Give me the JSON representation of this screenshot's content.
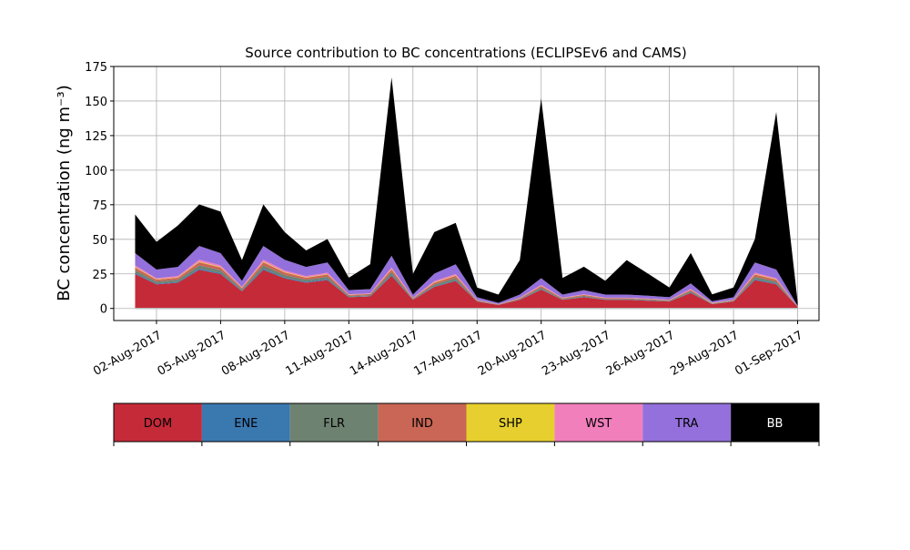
{
  "chart_data": {
    "type": "stacked_area",
    "title": "Source contribution to BC concentrations (ECLIPSEv6 and CAMS)",
    "y_label": "BC concentration (ng m⁻³)",
    "x": [
      "2017-08-01",
      "2017-08-02",
      "2017-08-03",
      "2017-08-04",
      "2017-08-05",
      "2017-08-06",
      "2017-08-07",
      "2017-08-08",
      "2017-08-09",
      "2017-08-10",
      "2017-08-11",
      "2017-08-12",
      "2017-08-13",
      "2017-08-14",
      "2017-08-15",
      "2017-08-16",
      "2017-08-17",
      "2017-08-18",
      "2017-08-19",
      "2017-08-20",
      "2017-08-21",
      "2017-08-22",
      "2017-08-23",
      "2017-08-24",
      "2017-08-25",
      "2017-08-26",
      "2017-08-27",
      "2017-08-28",
      "2017-08-29",
      "2017-08-30",
      "2017-08-31",
      "2017-09-01"
    ],
    "series": [
      {
        "name": "DOM",
        "color": "#c52a38",
        "values": [
          24.8,
          17.4,
          18.6,
          27.9,
          24.8,
          12.4,
          27.9,
          21.7,
          18.6,
          20.5,
          8.1,
          8.7,
          23.6,
          6.2,
          15.5,
          19.8,
          5,
          2.5,
          6.2,
          13.6,
          6.2,
          8.1,
          6.2,
          6.2,
          5.6,
          5,
          11.2,
          3.1,
          5,
          20.5,
          17.4,
          1.2
        ]
      },
      {
        "name": "ENE",
        "color": "#3a78b0",
        "values": [
          0.8,
          0.6,
          0.6,
          0.9,
          0.8,
          0.4,
          0.9,
          0.7,
          0.6,
          0.7,
          0.3,
          0.3,
          0.8,
          0.2,
          0.5,
          0.6,
          0.2,
          0.1,
          0.2,
          0.4,
          0.2,
          0.3,
          0.2,
          0.2,
          0.2,
          0.2,
          0.4,
          0.1,
          0.2,
          0.7,
          0.6,
          0
        ]
      },
      {
        "name": "FLR",
        "color": "#6e8271",
        "values": [
          2,
          1.4,
          1.5,
          2.3,
          2,
          1,
          2.3,
          1.8,
          1.5,
          1.7,
          0.7,
          0.7,
          1.9,
          0.5,
          1.3,
          1.6,
          0.4,
          0.2,
          0.5,
          1.1,
          0.5,
          0.7,
          0.5,
          0.5,
          0.5,
          0.4,
          0.9,
          0.3,
          0.4,
          1.7,
          1.4,
          0.1
        ]
      },
      {
        "name": "IND",
        "color": "#c96655",
        "values": [
          2,
          1.4,
          1.5,
          2.3,
          2,
          1,
          2.3,
          1.8,
          1.5,
          1.7,
          0.7,
          0.7,
          1.9,
          0.5,
          1.3,
          1.6,
          0.4,
          0.2,
          0.5,
          1.1,
          0.5,
          0.7,
          0.5,
          0.5,
          0.5,
          0.4,
          0.9,
          0.3,
          0.4,
          1.7,
          1.4,
          0.1
        ]
      },
      {
        "name": "SHP",
        "color": "#e6cf2e",
        "values": [
          0.4,
          0.3,
          0.3,
          0.5,
          0.4,
          0.2,
          0.5,
          0.4,
          0.3,
          0.3,
          0.1,
          0.1,
          0.4,
          0.1,
          0.3,
          0.3,
          0.1,
          0,
          0.1,
          0.2,
          0.1,
          0.1,
          0.1,
          0.1,
          0.1,
          0.1,
          0.2,
          0.1,
          0.1,
          0.3,
          0.3,
          0
        ]
      },
      {
        "name": "WST",
        "color": "#f07fbc",
        "values": [
          1.2,
          0.8,
          0.9,
          1.4,
          1.2,
          0.6,
          1.4,
          1.1,
          0.9,
          1,
          0.4,
          0.4,
          1.1,
          0.3,
          0.8,
          1,
          0.2,
          0.1,
          0.3,
          0.7,
          0.3,
          0.4,
          0.3,
          0.3,
          0.3,
          0.2,
          0.5,
          0.2,
          0.2,
          1,
          0.8,
          0.1
        ]
      },
      {
        "name": "TRA",
        "color": "#9370db",
        "values": [
          8.8,
          6.2,
          6.6,
          9.9,
          8.8,
          4.4,
          9.9,
          7.7,
          6.6,
          7.3,
          2.9,
          3.1,
          8.4,
          2.2,
          5.5,
          7,
          1.8,
          0.9,
          2.2,
          4.8,
          2.2,
          2.9,
          2.2,
          2.2,
          2,
          1.8,
          4,
          1.1,
          1.8,
          7.3,
          6.2,
          0.4
        ]
      },
      {
        "name": "BB",
        "color": "#000000",
        "values": [
          28,
          20,
          30,
          30,
          30,
          15,
          30,
          20,
          12,
          17,
          9,
          18,
          129,
          15,
          30,
          30,
          7,
          6,
          25,
          130,
          12,
          17,
          10,
          25,
          16,
          7,
          22,
          5,
          7,
          17,
          114,
          3
        ]
      }
    ],
    "xlim": [
      "2017-07-31",
      "2017-09-02"
    ],
    "xticks": [
      {
        "value": "2017-08-02",
        "label": "02-Aug-2017"
      },
      {
        "value": "2017-08-05",
        "label": "05-Aug-2017"
      },
      {
        "value": "2017-08-08",
        "label": "08-Aug-2017"
      },
      {
        "value": "2017-08-11",
        "label": "11-Aug-2017"
      },
      {
        "value": "2017-08-14",
        "label": "14-Aug-2017"
      },
      {
        "value": "2017-08-17",
        "label": "17-Aug-2017"
      },
      {
        "value": "2017-08-20",
        "label": "20-Aug-2017"
      },
      {
        "value": "2017-08-23",
        "label": "23-Aug-2017"
      },
      {
        "value": "2017-08-26",
        "label": "26-Aug-2017"
      },
      {
        "value": "2017-08-29",
        "label": "29-Aug-2017"
      },
      {
        "value": "2017-09-01",
        "label": "01-Sep-2017"
      }
    ],
    "ylim": [
      -8.75,
      175
    ],
    "yticks": [
      0,
      25,
      50,
      75,
      100,
      125,
      150,
      175
    ],
    "grid": true
  }
}
